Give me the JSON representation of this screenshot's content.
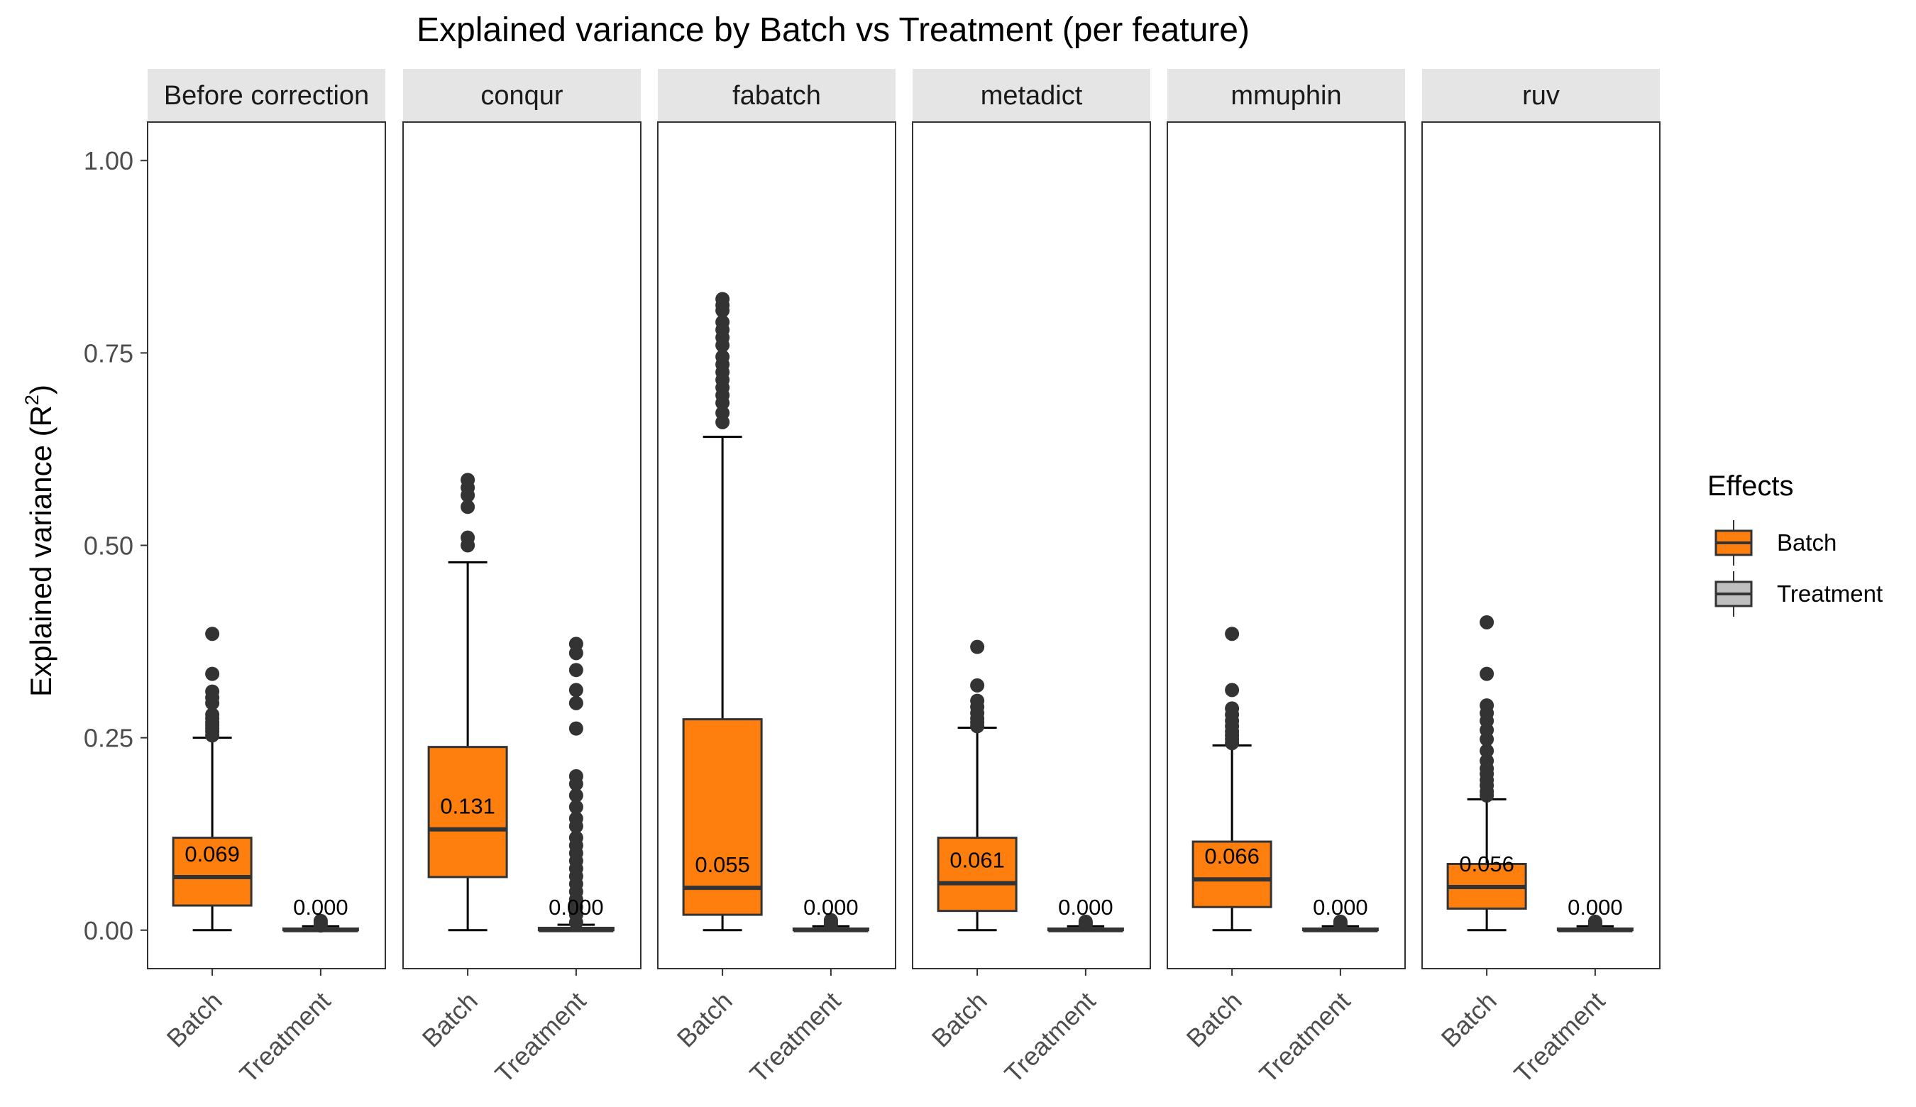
{
  "chart_data": {
    "type": "box",
    "title": "Explained variance by Batch vs Treatment (per feature)",
    "ylabel": "Explained variance (R",
    "ylabel_sup": "2",
    "ylabel_close": ")",
    "ylim": [
      -0.05,
      1.05
    ],
    "yticks": [
      "0.00",
      "0.25",
      "0.50",
      "0.75",
      "1.00"
    ],
    "ytick_values": [
      0,
      0.25,
      0.5,
      0.75,
      1.0
    ],
    "grid": false,
    "legend_position": "right",
    "legend": {
      "title": "Effects",
      "items": [
        {
          "label": "Batch",
          "color": "#FF7F0E"
        },
        {
          "label": "Treatment",
          "color": "#BFBFBF"
        }
      ]
    },
    "colors": {
      "Batch": "#FF7F0E",
      "Treatment": "#BFBFBF",
      "strip": "#E5E5E5",
      "outlier": "#333333"
    },
    "categories": [
      "Batch",
      "Treatment"
    ],
    "panels": [
      {
        "name": "Before correction",
        "boxes": [
          {
            "category": "Batch",
            "min": 0.0,
            "q1": 0.032,
            "median": 0.069,
            "q3": 0.12,
            "max": 0.25,
            "median_label": "0.069",
            "outliers": [
              0.253,
              0.258,
              0.262,
              0.266,
              0.27,
              0.275,
              0.28,
              0.295,
              0.302,
              0.31,
              0.333,
              0.385
            ]
          },
          {
            "category": "Treatment",
            "min": 0.0,
            "q1": 0.0,
            "median": 0.0,
            "q3": 0.002,
            "max": 0.005,
            "median_label": "0.000",
            "outliers": [
              0.006,
              0.008,
              0.01,
              0.012
            ]
          }
        ]
      },
      {
        "name": "conqur",
        "boxes": [
          {
            "category": "Batch",
            "min": 0.0,
            "q1": 0.069,
            "median": 0.131,
            "q3": 0.238,
            "max": 0.478,
            "median_label": "0.131",
            "outliers": [
              0.5,
              0.51,
              0.55,
              0.565,
              0.575,
              0.585
            ]
          },
          {
            "category": "Treatment",
            "min": 0.0,
            "q1": 0.0,
            "median": 0.0,
            "q3": 0.003,
            "max": 0.007,
            "median_label": "0.000",
            "outliers": [
              0.01,
              0.02,
              0.03,
              0.04,
              0.05,
              0.06,
              0.07,
              0.08,
              0.09,
              0.1,
              0.11,
              0.12,
              0.135,
              0.145,
              0.16,
              0.175,
              0.19,
              0.2,
              0.262,
              0.295,
              0.312,
              0.338,
              0.36,
              0.372
            ]
          }
        ]
      },
      {
        "name": "fabatch",
        "boxes": [
          {
            "category": "Batch",
            "min": 0.0,
            "q1": 0.02,
            "median": 0.055,
            "q3": 0.274,
            "max": 0.641,
            "median_label": "0.055",
            "outliers": [
              0.66,
              0.672,
              0.685,
              0.695,
              0.705,
              0.715,
              0.725,
              0.735,
              0.745,
              0.76,
              0.77,
              0.78,
              0.79,
              0.805,
              0.812,
              0.82
            ]
          },
          {
            "category": "Treatment",
            "min": 0.0,
            "q1": 0.0,
            "median": 0.0,
            "q3": 0.002,
            "max": 0.005,
            "median_label": "0.000",
            "outliers": [
              0.007,
              0.009,
              0.011,
              0.013
            ]
          }
        ]
      },
      {
        "name": "metadict",
        "boxes": [
          {
            "category": "Batch",
            "min": 0.0,
            "q1": 0.025,
            "median": 0.061,
            "q3": 0.12,
            "max": 0.263,
            "median_label": "0.061",
            "outliers": [
              0.265,
              0.27,
              0.275,
              0.282,
              0.29,
              0.298,
              0.318,
              0.368
            ]
          },
          {
            "category": "Treatment",
            "min": 0.0,
            "q1": 0.0,
            "median": 0.0,
            "q3": 0.002,
            "max": 0.005,
            "median_label": "0.000",
            "outliers": [
              0.007,
              0.009,
              0.011
            ]
          }
        ]
      },
      {
        "name": "mmuphin",
        "boxes": [
          {
            "category": "Batch",
            "min": 0.0,
            "q1": 0.03,
            "median": 0.066,
            "q3": 0.115,
            "max": 0.24,
            "median_label": "0.066",
            "outliers": [
              0.243,
              0.248,
              0.253,
              0.258,
              0.265,
              0.272,
              0.28,
              0.288,
              0.312,
              0.385
            ]
          },
          {
            "category": "Treatment",
            "min": 0.0,
            "q1": 0.0,
            "median": 0.0,
            "q3": 0.002,
            "max": 0.005,
            "median_label": "0.000",
            "outliers": [
              0.007,
              0.009,
              0.011
            ]
          }
        ]
      },
      {
        "name": "ruv",
        "boxes": [
          {
            "category": "Batch",
            "min": 0.0,
            "q1": 0.028,
            "median": 0.056,
            "q3": 0.086,
            "max": 0.17,
            "median_label": "0.056",
            "outliers": [
              0.175,
              0.18,
              0.188,
              0.195,
              0.203,
              0.21,
              0.22,
              0.233,
              0.248,
              0.26,
              0.272,
              0.282,
              0.292,
              0.333,
              0.4
            ]
          },
          {
            "category": "Treatment",
            "min": 0.0,
            "q1": 0.0,
            "median": 0.0,
            "q3": 0.002,
            "max": 0.005,
            "median_label": "0.000",
            "outliers": [
              0.007,
              0.009,
              0.011
            ]
          }
        ]
      }
    ]
  }
}
